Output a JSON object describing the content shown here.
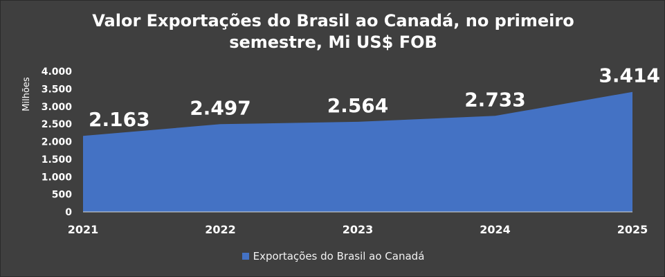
{
  "chart_data": {
    "type": "area",
    "title": "Valor Exportações do Brasil ao Canadá, no primeiro semestre, Mi US$ FOB",
    "title_lines": [
      "Valor Exportações do Brasil ao Canadá, no primeiro",
      "semestre, Mi US$ FOB"
    ],
    "ylabel": "Milhões",
    "xlabel": "",
    "categories": [
      "2021",
      "2022",
      "2023",
      "2024",
      "2025"
    ],
    "series": [
      {
        "name": "Exportações do Brasil ao Canadá",
        "values": [
          2163,
          2497,
          2564,
          2733,
          3414
        ],
        "labels": [
          "2.163",
          "2.497",
          "2.564",
          "2.733",
          "3.414"
        ]
      }
    ],
    "ylim": [
      0,
      4000
    ],
    "yticks": [
      0,
      500,
      1000,
      1500,
      2000,
      2500,
      3000,
      3500,
      4000
    ],
    "ytick_labels": [
      "0",
      "500",
      "1.000",
      "1.500",
      "2.000",
      "2.500",
      "3.000",
      "3.500",
      "4.000"
    ],
    "grid": false,
    "legend_position": "bottom",
    "colors": {
      "background": "#3f3f3f",
      "series": "#4472c4",
      "text": "#ffffff"
    }
  }
}
